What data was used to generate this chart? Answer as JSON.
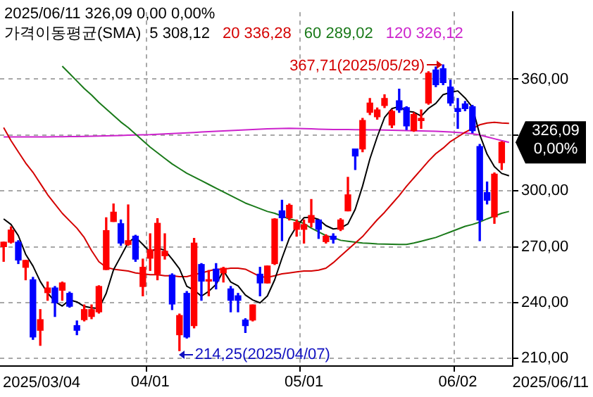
{
  "chart_data": {
    "type": "candlestick",
    "title": "2025/06/11 326,09 0,00 0,00%",
    "legend_title": "가격이동평균(SMA)",
    "legend": "top",
    "grid": true,
    "categories": [
      null,
      null,
      null,
      null,
      null,
      null,
      null,
      null,
      null,
      null,
      null,
      null,
      null,
      null,
      null,
      null,
      null,
      null,
      null,
      null,
      "04/01",
      null,
      null,
      null,
      null,
      null,
      null,
      null,
      null,
      null,
      null,
      null,
      null,
      null,
      null,
      null,
      null,
      null,
      null,
      null,
      null,
      "05/01",
      null,
      null,
      null,
      null,
      null,
      null,
      null,
      null,
      null,
      null,
      null,
      null,
      null,
      null,
      null,
      null,
      null,
      null,
      null,
      null,
      "06/02",
      null,
      null,
      null,
      null,
      null,
      null,
      null
    ],
    "ohlc": [
      [
        270.1,
        272.5,
        262.2,
        272.5
      ],
      [
        272.5,
        280.7,
        272.0,
        279.0
      ],
      [
        272.5,
        273.3,
        261.0,
        262.9
      ],
      [
        259.0,
        262.7,
        252.3,
        262.7
      ],
      [
        252.3,
        253.6,
        220.3,
        221.6
      ],
      [
        225.2,
        236.3,
        217.1,
        230.9
      ],
      [
        245.4,
        251.1,
        241.3,
        247.9
      ],
      [
        247.9,
        248.7,
        232.6,
        240.0
      ],
      [
        246.7,
        251.1,
        241.3,
        250.6
      ],
      [
        245.0,
        245.7,
        237.6,
        238.1
      ],
      [
        227.7,
        230.2,
        222.8,
        225.2
      ],
      [
        230.9,
        238.8,
        230.2,
        236.3
      ],
      [
        232.6,
        238.8,
        231.4,
        236.3
      ],
      [
        235.1,
        249.1,
        234.4,
        248.7
      ],
      [
        257.8,
        285.6,
        257.8,
        278.7
      ],
      [
        283.6,
        293.0,
        283.6,
        288.6
      ],
      [
        282.4,
        284.4,
        270.8,
        272.0
      ],
      [
        271.3,
        292.5,
        270.8,
        273.3
      ],
      [
        275.7,
        276.2,
        262.2,
        263.4
      ],
      [
        248.7,
        263.4,
        243.7,
        259.0
      ],
      [
        263.9,
        277.0,
        257.3,
        268.4
      ],
      [
        255.5,
        285.1,
        252.3,
        282.6
      ],
      [
        265.2,
        277.0,
        263.4,
        267.6
      ],
      [
        254.8,
        255.5,
        236.3,
        239.3
      ],
      [
        222.8,
        233.9,
        214.25,
        233.1
      ],
      [
        245.0,
        246.0,
        221.0,
        221.6
      ],
      [
        227.7,
        274.5,
        226.5,
        272.0
      ],
      [
        260.5,
        261.0,
        241.3,
        251.6
      ],
      [
        251.6,
        257.3,
        243.7,
        252.3
      ],
      [
        258.0,
        261.0,
        247.4,
        251.6
      ],
      [
        256.0,
        259.0,
        251.1,
        258.5
      ],
      [
        247.4,
        248.7,
        235.1,
        241.3
      ],
      [
        243.7,
        245.0,
        235.1,
        241.3
      ],
      [
        230.7,
        231.4,
        224.0,
        227.7
      ],
      [
        230.7,
        238.8,
        230.2,
        238.8
      ],
      [
        255.3,
        259.0,
        243.7,
        250.6
      ],
      [
        250.6,
        259.7,
        250.6,
        259.7
      ],
      [
        261.0,
        285.1,
        260.5,
        284.9
      ],
      [
        289.3,
        295.0,
        273.3,
        285.6
      ],
      [
        285.6,
        293.0,
        284.4,
        292.3
      ],
      [
        279.4,
        284.4,
        275.7,
        283.1
      ],
      [
        279.4,
        284.4,
        272.0,
        281.9
      ],
      [
        283.1,
        295.4,
        280.7,
        286.8
      ],
      [
        284.4,
        284.4,
        274.5,
        279.4
      ],
      [
        272.8,
        276.5,
        272.0,
        275.7
      ],
      [
        275.7,
        277.0,
        272.0,
        274.0
      ],
      [
        279.4,
        285.1,
        278.7,
        284.4
      ],
      [
        289.3,
        307.3,
        289.3,
        297.9
      ],
      [
        322.5,
        322.5,
        311.5,
        318.8
      ],
      [
        322.5,
        339.0,
        321.0,
        337.8
      ],
      [
        342.2,
        349.6,
        341.0,
        347.2
      ],
      [
        339.8,
        344.5,
        338.5,
        343.5
      ],
      [
        345.9,
        351.6,
        344.7,
        349.6
      ],
      [
        335.4,
        343.5,
        334.0,
        342.7
      ],
      [
        348.4,
        354.6,
        342.2,
        343.5
      ],
      [
        344.7,
        345.2,
        332.9,
        334.9
      ],
      [
        332.4,
        342.0,
        332.0,
        341.0
      ],
      [
        337.8,
        343.5,
        333.6,
        339.0
      ],
      [
        347.2,
        364.0,
        346.5,
        363.2
      ],
      [
        364.9,
        366.5,
        356.0,
        357.0
      ],
      [
        365.6,
        367.71,
        357.0,
        358.2
      ],
      [
        355.8,
        359.5,
        345.9,
        347.2
      ],
      [
        344.2,
        349.6,
        333.6,
        342.7
      ],
      [
        346.7,
        348.0,
        343.0,
        344.2
      ],
      [
        345.2,
        345.9,
        331.2,
        332.4
      ],
      [
        323.8,
        325.0,
        273.3,
        284.4
      ],
      [
        299.1,
        304.8,
        293.0,
        295.0
      ],
      [
        286.1,
        309.7,
        282.6,
        309.0
      ],
      [
        315.2,
        326.5,
        311.5,
        326.09
      ],
      null
    ],
    "colors": [
      "#ff0000",
      "#ff0000",
      "#0000ff",
      "#ff0000",
      "#0000ff",
      "#ff0000",
      "#ff0000",
      "#0000ff",
      "#ff0000",
      "#0000ff",
      "#0000ff",
      "#ff0000",
      "#ff0000",
      "#ff0000",
      "#ff0000",
      "#ff0000",
      "#0000ff",
      "#ff0000",
      "#0000ff",
      "#ff0000",
      "#ff0000",
      "#ff0000",
      "#ff0000",
      "#0000ff",
      "#ff0000",
      "#0000ff",
      "#ff0000",
      "#0000ff",
      "#ff0000",
      "#0000ff",
      "#ff0000",
      "#0000ff",
      "#0000ff",
      "#0000ff",
      "#ff0000",
      "#0000ff",
      "#ff0000",
      "#ff0000",
      "#0000ff",
      "#ff0000",
      "#ff0000",
      "#ff0000",
      "#ff0000",
      "#0000ff",
      "#ff0000",
      "#0000ff",
      "#ff0000",
      "#ff0000",
      "#0000ff",
      "#ff0000",
      "#ff0000",
      "#ff0000",
      "#ff0000",
      "#ff0000",
      "#0000ff",
      "#0000ff",
      "#ff0000",
      "#ff0000",
      "#ff0000",
      "#0000ff",
      "#0000ff",
      "#0000ff",
      "#0000ff",
      "#0000ff",
      "#0000ff",
      "#0000ff",
      "#0000ff",
      "#ff0000",
      "#ff0000",
      null
    ],
    "series": [
      {
        "type": "line",
        "name": "5 308,12",
        "color": "#000000",
        "values": [
          285,
          282,
          276,
          266,
          259.7,
          251.4,
          245.2,
          240.6,
          238.2,
          241.5,
          240.4,
          238.0,
          237.3,
          236.9,
          245.0,
          257.7,
          264.9,
          272.3,
          275.2,
          271.3,
          267.2,
          269.3,
          268.2,
          263.4,
          258.2,
          248.8,
          246.7,
          243.5,
          246.1,
          249.8,
          257.2,
          251.1,
          249.0,
          244.1,
          241.5,
          239.9,
          243.6,
          252.3,
          263.9,
          274.6,
          281.1,
          285.6,
          285.9,
          284.7,
          281.4,
          279.6,
          280.1,
          282.3,
          290.2,
          302.6,
          317.2,
          329.0,
          339.4,
          344.2,
          345.3,
          342.8,
          342.3,
          340.2,
          344.3,
          347.0,
          351.7,
          352.9,
          353.7,
          349.9,
          344.9,
          330.2,
          319.7,
          313.0,
          309.4,
          308.1
        ]
      },
      {
        "type": "line",
        "name": "20 336,28",
        "color": "#d40000",
        "values": [
          334,
          327,
          321,
          315,
          310,
          304,
          298,
          293,
          288,
          284,
          280,
          275,
          268,
          262,
          259,
          258,
          257.5,
          257,
          256,
          255.5,
          255,
          255,
          254.5,
          254.5,
          254,
          254,
          255,
          256,
          257,
          258,
          258,
          258.5,
          258.5,
          258,
          256,
          254,
          253.6,
          254.5,
          255.5,
          256,
          256.5,
          257,
          257,
          257.5,
          258.5,
          261.5,
          265,
          268.5,
          272,
          275.5,
          280,
          284.5,
          288.5,
          293,
          297.5,
          302.5,
          307,
          311.5,
          316,
          320,
          323,
          326.5,
          329,
          331.5,
          333.5,
          335.5,
          336.5,
          336.8,
          336.5,
          336.3
        ]
      },
      {
        "type": "line",
        "name": "60 289,02",
        "color": "#1a7a1a",
        "values": [
          null,
          null,
          null,
          null,
          null,
          null,
          null,
          null,
          367,
          363,
          359,
          355,
          351.5,
          347.5,
          344,
          340.5,
          337,
          334,
          330.5,
          327,
          323.5,
          320.5,
          317.5,
          314.5,
          312,
          309.5,
          307.5,
          305.5,
          303.5,
          301.5,
          299.5,
          297.5,
          295.5,
          293.5,
          292,
          290.5,
          289,
          288,
          286.5,
          285,
          284,
          282.5,
          280,
          278,
          276,
          275,
          273.5,
          273,
          272.5,
          272,
          271.8,
          271.6,
          271.5,
          271.4,
          271.3,
          271.3,
          272,
          273,
          274,
          275,
          276.5,
          278,
          279.5,
          281,
          282,
          283.3,
          285,
          286.5,
          288,
          289.0
        ]
      },
      {
        "type": "line",
        "name": "120 326,12",
        "color": "#cc22cc",
        "values": [
          329.0,
          329.0,
          329.0,
          329.0,
          329.0,
          329.0,
          329.0,
          329.1,
          329.1,
          329.2,
          329.2,
          329.3,
          329.4,
          329.5,
          329.6,
          329.7,
          329.8,
          329.9,
          330.0,
          330.1,
          330.2,
          330.4,
          330.6,
          330.8,
          331.0,
          331.2,
          331.4,
          331.6,
          331.8,
          332.0,
          332.2,
          332.4,
          332.6,
          332.8,
          333.0,
          333.2,
          333.3,
          333.4,
          333.5,
          333.6,
          333.5,
          333.4,
          333.3,
          333.2,
          333.1,
          333.0,
          333.0,
          333.0,
          332.9,
          332.9,
          332.8,
          332.8,
          332.7,
          332.6,
          332.5,
          332.4,
          332.3,
          332.2,
          332.1,
          332.0,
          331.8,
          331.6,
          331.4,
          331.1,
          330.7,
          330.0,
          329.0,
          328.0,
          327.0,
          326.1
        ]
      }
    ],
    "ylim": [
      206,
      396
    ],
    "yticks": [
      {
        "value": 210,
        "label": "210,00"
      },
      {
        "value": 240,
        "label": "240,00"
      },
      {
        "value": 270,
        "label": "270,00"
      },
      {
        "value": 300,
        "label": "300,00"
      },
      {
        "value": 330,
        "label": null
      },
      {
        "value": 360,
        "label": "360,00"
      }
    ],
    "annotations": [
      "367,71(2025/05/29)",
      "214,25(2025/04/07)",
      "326,09\n0,00%",
      "2025/03/04",
      "2025/06/11"
    ]
  }
}
